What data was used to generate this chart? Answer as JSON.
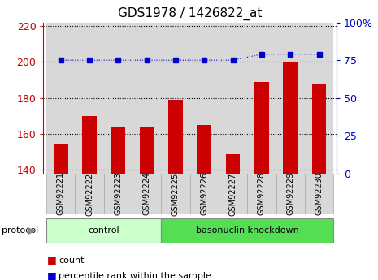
{
  "title": "GDS1978 / 1426822_at",
  "samples": [
    "GSM92221",
    "GSM92222",
    "GSM92223",
    "GSM92224",
    "GSM92225",
    "GSM92226",
    "GSM92227",
    "GSM92228",
    "GSM92229",
    "GSM92230"
  ],
  "counts": [
    154,
    170,
    164,
    164,
    179,
    165,
    149,
    189,
    200,
    188
  ],
  "percentile_ranks": [
    75,
    75,
    75,
    75,
    75,
    75,
    75,
    79,
    79,
    79
  ],
  "bar_color": "#cc0000",
  "dot_color": "#0000cc",
  "ylim_left": [
    138,
    222
  ],
  "ylim_right": [
    0,
    100
  ],
  "yticks_left": [
    140,
    160,
    180,
    200,
    220
  ],
  "yticks_right": [
    0,
    25,
    50,
    75,
    100
  ],
  "right_tick_labels": [
    "0",
    "25",
    "50",
    "75",
    "100%"
  ],
  "groups": [
    {
      "label": "control",
      "start": 0,
      "end": 3,
      "color": "#ccffcc"
    },
    {
      "label": "basonuclin knockdown",
      "start": 4,
      "end": 9,
      "color": "#55dd55"
    }
  ],
  "protocol_label": "protocol",
  "legend_items": [
    {
      "label": "count",
      "color": "#cc0000"
    },
    {
      "label": "percentile rank within the sample",
      "color": "#0000cc"
    }
  ],
  "background_color": "#ffffff",
  "panel_color": "#d8d8d8",
  "dotted_line_color": "#000000"
}
